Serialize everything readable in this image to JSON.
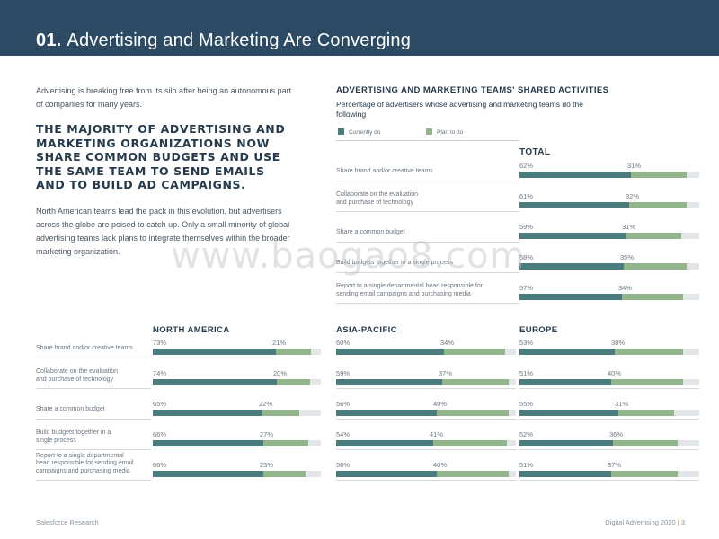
{
  "header": {
    "number": "01.",
    "title": "Advertising and Marketing Are Converging"
  },
  "intro": "Advertising is breaking free from its silo after being an autonomous part of companies for many years.",
  "headline": "The majority of advertising and marketing organizations now share common budgets and use the same team to send emails and to build ad campaigns.",
  "body": "North American teams lead the pack in this evolution, but advertisers across the globe are poised to catch up. Only a small minority of global advertising teams lack plans to integrate themselves within the broader marketing organization.",
  "section": {
    "title": "ADVERTISING AND MARKETING TEAMS' SHARED ACTIVITIES",
    "subtitle": "Percentage of advertisers whose advertising and marketing teams do the following"
  },
  "legend": {
    "current": "Currently do",
    "plan": "Plan to do"
  },
  "colors": {
    "current": "#4a7c7d",
    "plan": "#93b58c",
    "track": "#e3e6e8",
    "header": "#2c4a63"
  },
  "watermark": "www.baogao8.com",
  "footer": {
    "left": "Salesforce Research",
    "right": "Digital Advertising 2020",
    "sep": "|",
    "page": "3"
  },
  "chart_data": [
    {
      "type": "bar",
      "title": "TOTAL",
      "categories": [
        "Share brand and/or creative teams",
        "Collaborate on the evaluation and purchase of technology",
        "Share a common budget",
        "Build budgets together in a single process",
        "Report to a single departmental head responsible for sending email campaigns and purchasing media"
      ],
      "category_labels": [
        "Share brand and/or creative teams",
        "Collaborate on the evaluation\nand purchase of technology",
        "Share a common budget",
        "Build budgets together in a single process",
        "Report to a single departmental head responsible for\nsending email campaigns and purchasing media"
      ],
      "series": [
        {
          "name": "Currently do",
          "values": [
            62,
            61,
            59,
            58,
            57
          ]
        },
        {
          "name": "Plan to do",
          "values": [
            31,
            32,
            31,
            35,
            34
          ]
        }
      ],
      "value_labels": [
        [
          "62%",
          "31%"
        ],
        [
          "61%",
          "32%"
        ],
        [
          "59%",
          "31%"
        ],
        [
          "58%",
          "35%"
        ],
        [
          "57%",
          "34%"
        ]
      ],
      "ylim": [
        0,
        100
      ]
    },
    {
      "type": "bar",
      "title": "NORTH AMERICA",
      "categories": [
        "Share brand and/or creative teams",
        "Collaborate on the evaluation and purchase of technology",
        "Share a common budget",
        "Build budgets together in a single process",
        "Report to a single departmental head responsible for sending email campaigns and purchasing media"
      ],
      "category_labels": [
        "Share brand and/or creative teams",
        "Collaborate on the evaluation\nand purchase of technology",
        "Share a common budget",
        "Build budgets together in a\nsingle process",
        "Report to a single departmental\nhead responsible for sending email\ncampaigns and purchasing media"
      ],
      "series": [
        {
          "name": "Currently do",
          "values": [
            73,
            74,
            65,
            66,
            66
          ]
        },
        {
          "name": "Plan to do",
          "values": [
            21,
            20,
            22,
            27,
            25
          ]
        }
      ],
      "value_labels": [
        [
          "73%",
          "21%"
        ],
        [
          "74%",
          "20%"
        ],
        [
          "65%",
          "22%"
        ],
        [
          "66%",
          "27%"
        ],
        [
          "66%",
          "25%"
        ]
      ],
      "ylim": [
        0,
        100
      ]
    },
    {
      "type": "bar",
      "title": "ASIA-PACIFIC",
      "categories": [
        "Share brand and/or creative teams",
        "Collaborate on the evaluation and purchase of technology",
        "Share a common budget",
        "Build budgets together in a single process",
        "Report to a single departmental head responsible for sending email campaigns and purchasing media"
      ],
      "series": [
        {
          "name": "Currently do",
          "values": [
            60,
            59,
            56,
            54,
            56
          ]
        },
        {
          "name": "Plan to do",
          "values": [
            34,
            37,
            40,
            41,
            40
          ]
        }
      ],
      "value_labels": [
        [
          "60%",
          "34%"
        ],
        [
          "59%",
          "37%"
        ],
        [
          "56%",
          "40%"
        ],
        [
          "54%",
          "41%"
        ],
        [
          "56%",
          "40%"
        ]
      ],
      "ylim": [
        0,
        100
      ]
    },
    {
      "type": "bar",
      "title": "EUROPE",
      "categories": [
        "Share brand and/or creative teams",
        "Collaborate on the evaluation and purchase of technology",
        "Share a common budget",
        "Build budgets together in a single process",
        "Report to a single departmental head responsible for sending email campaigns and purchasing media"
      ],
      "series": [
        {
          "name": "Currently do",
          "values": [
            53,
            51,
            55,
            52,
            51
          ]
        },
        {
          "name": "Plan to do",
          "values": [
            38,
            40,
            31,
            36,
            37
          ]
        }
      ],
      "value_labels": [
        [
          "53%",
          "38%"
        ],
        [
          "51%",
          "40%"
        ],
        [
          "55%",
          "31%"
        ],
        [
          "52%",
          "36%"
        ],
        [
          "51%",
          "37%"
        ]
      ],
      "ylim": [
        0,
        100
      ]
    }
  ]
}
